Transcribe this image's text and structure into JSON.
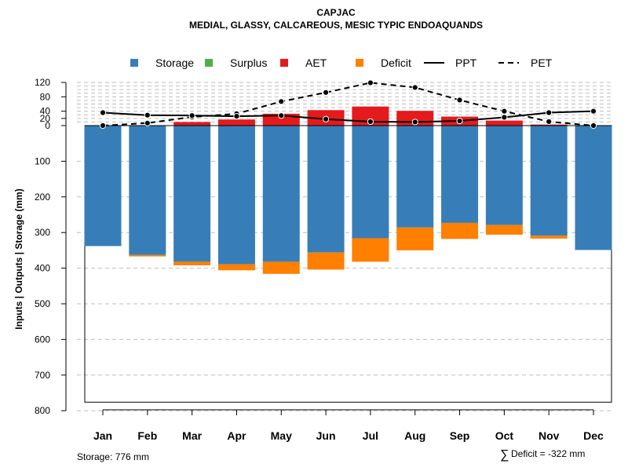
{
  "chart_data": {
    "type": "bar",
    "title": "CAPJAC",
    "subtitle": "MEDIAL, GLASSY, CALCAREOUS, MESIC TYPIC ENDOAQUANDS",
    "ylabel": "Inputs | Outputs | Storage    (mm)",
    "categories": [
      "Jan",
      "Feb",
      "Mar",
      "Apr",
      "May",
      "Jun",
      "Jul",
      "Aug",
      "Sep",
      "Oct",
      "Nov",
      "Dec"
    ],
    "y_ticks_up": [
      0,
      20,
      40,
      80,
      120
    ],
    "y_ticks_down": [
      0,
      100,
      200,
      300,
      400,
      500,
      600,
      700,
      800
    ],
    "ylim": [
      -800,
      120
    ],
    "series": [
      {
        "name": "Storage",
        "color": "#377eb8",
        "values": [
          338,
          363,
          382,
          389,
          382,
          356,
          316,
          286,
          273,
          279,
          309,
          349
        ]
      },
      {
        "name": "Surplus",
        "color": "#4daf4a",
        "values": [
          0,
          0,
          0,
          0,
          0,
          0,
          0,
          0,
          0,
          0,
          0,
          0
        ]
      },
      {
        "name": "AET",
        "color": "#e41a1c",
        "values": [
          0,
          0,
          10,
          17,
          33,
          43,
          53,
          41,
          25,
          14,
          3,
          0
        ]
      },
      {
        "name": "Deficit",
        "color": "#ff7f00",
        "values": [
          0,
          4,
          10,
          17,
          34,
          48,
          66,
          64,
          45,
          27,
          8,
          0
        ]
      },
      {
        "name": "PPT",
        "color": "#000000",
        "style": "solid",
        "values": [
          36,
          29,
          28,
          26,
          28,
          18,
          11,
          10,
          13,
          23,
          36,
          40
        ]
      },
      {
        "name": "PET",
        "color": "#000000",
        "style": "dashed",
        "values": [
          0,
          7,
          24,
          33,
          67,
          92,
          119,
          106,
          71,
          40,
          11,
          0
        ]
      }
    ],
    "legend": [
      "Storage",
      "Surplus",
      "AET",
      "Deficit",
      "PPT",
      "PET"
    ],
    "legend_position": "top",
    "grid": true
  },
  "footnotes": {
    "storage": "Storage: 776 mm",
    "deficit_symbol": "∑",
    "deficit": "Deficit = -322 mm"
  },
  "total_storage": 776
}
